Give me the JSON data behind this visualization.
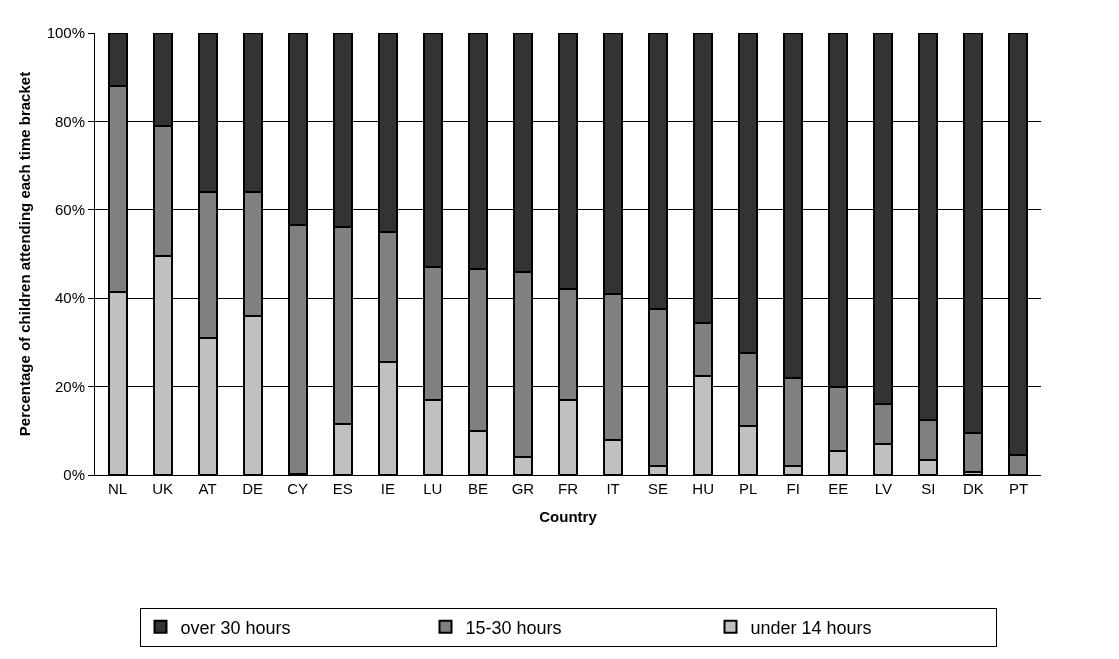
{
  "chart_data": {
    "type": "bar",
    "stacked": true,
    "xlabel": "Country",
    "ylabel": "Percentage of children attending each time bracket",
    "categories": [
      "NL",
      "UK",
      "AT",
      "DE",
      "CY",
      "ES",
      "IE",
      "LU",
      "BE",
      "GR",
      "FR",
      "IT",
      "SE",
      "HU",
      "PL",
      "FI",
      "EE",
      "LV",
      "SI",
      "DK",
      "PT"
    ],
    "series": [
      {
        "name": "under 14 hours",
        "color": "#c0c0c0",
        "values": [
          41.5,
          49.5,
          31,
          36,
          0.3,
          11.5,
          25.5,
          17,
          10,
          4,
          17,
          8,
          2,
          22.5,
          11,
          2,
          5.5,
          7,
          3.5,
          0.7,
          0
        ]
      },
      {
        "name": "15-30 hours",
        "color": "#808080",
        "values": [
          46.5,
          29.5,
          33,
          28,
          56.2,
          44.5,
          29.5,
          30,
          36.5,
          42,
          25,
          33,
          35.5,
          12,
          16.5,
          20,
          14.5,
          9,
          9,
          8.8,
          4.5
        ]
      },
      {
        "name": "over 30 hours",
        "color": "#333333",
        "values": [
          12,
          21,
          36,
          36,
          43.5,
          44,
          45,
          53,
          53.5,
          54,
          58,
          59,
          62.5,
          65.5,
          72.5,
          78,
          80,
          84,
          87.5,
          90.5,
          95.5
        ]
      }
    ],
    "ylim": [
      0,
      100
    ],
    "yticks": [
      {
        "value": 0,
        "label": "0%"
      },
      {
        "value": 20,
        "label": "20%"
      },
      {
        "value": 40,
        "label": "40%"
      },
      {
        "value": 60,
        "label": "60%"
      },
      {
        "value": 80,
        "label": "80%"
      },
      {
        "value": 100,
        "label": "100%"
      }
    ],
    "grid": "y",
    "legend": "bottom"
  }
}
